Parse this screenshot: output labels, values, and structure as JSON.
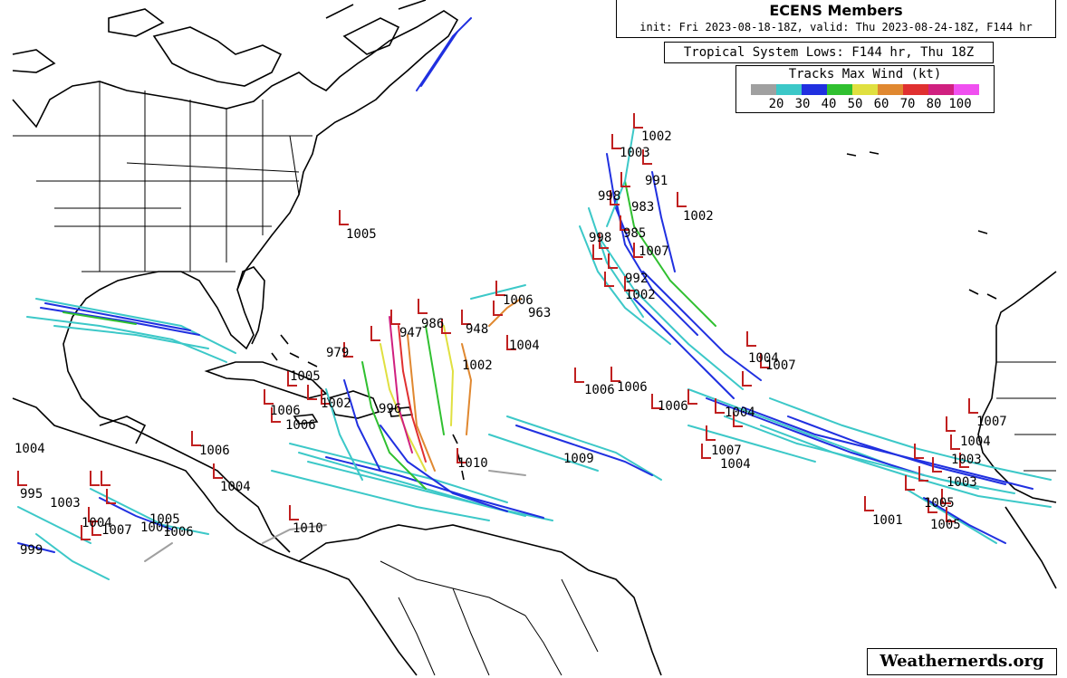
{
  "header": {
    "title": "ECENS Members",
    "subtitle": "init: Fri 2023-08-18-18Z, valid: Thu 2023-08-24-18Z, F144 hr",
    "system_label": "Tropical System Lows: F144 hr, Thu 18Z"
  },
  "legend": {
    "title": "Tracks Max Wind (kt)",
    "colors": [
      "#a0a0a0",
      "#3cc8c8",
      "#2030e0",
      "#30c030",
      "#e0e040",
      "#e08830",
      "#e03030",
      "#d02080",
      "#f050f0"
    ],
    "ticks": [
      "20",
      "30",
      "40",
      "50",
      "60",
      "70",
      "80",
      "100"
    ]
  },
  "watermark": "Weathernerds.org",
  "track_colors": {
    "weak": "#3cc8c8",
    "ts": "#2030e0",
    "mod": "#30c030",
    "strong": "#e0e040",
    "cat1": "#e08830",
    "cat2": "#e03030",
    "cat3": "#d02080",
    "depression": "#a0a0a0",
    "low_marker": "#c02020"
  },
  "labels": [
    {
      "id": "l1",
      "text": "1002"
    },
    {
      "id": "l2",
      "text": "1003"
    },
    {
      "id": "l3",
      "text": "991"
    },
    {
      "id": "l4",
      "text": "998"
    },
    {
      "id": "l5",
      "text": "983"
    },
    {
      "id": "l6",
      "text": "1002"
    },
    {
      "id": "l7",
      "text": "985"
    },
    {
      "id": "l8",
      "text": "998"
    },
    {
      "id": "l9",
      "text": "1007"
    },
    {
      "id": "l10",
      "text": "992"
    },
    {
      "id": "l11",
      "text": "1002"
    },
    {
      "id": "l12",
      "text": "1005"
    },
    {
      "id": "l13",
      "text": "1006"
    },
    {
      "id": "l14",
      "text": "963"
    },
    {
      "id": "l15",
      "text": "986"
    },
    {
      "id": "l16",
      "text": "948"
    },
    {
      "id": "l17",
      "text": "947"
    },
    {
      "id": "l18",
      "text": "1004"
    },
    {
      "id": "l19",
      "text": "979"
    },
    {
      "id": "l20",
      "text": "1002"
    },
    {
      "id": "l21",
      "text": "1005"
    },
    {
      "id": "l22",
      "text": "1002"
    },
    {
      "id": "l23",
      "text": "996"
    },
    {
      "id": "l24",
      "text": "1006"
    },
    {
      "id": "l25",
      "text": "1006"
    },
    {
      "id": "l26",
      "text": "1006"
    },
    {
      "id": "l27",
      "text": "1004"
    },
    {
      "id": "l28",
      "text": "1006"
    },
    {
      "id": "l29",
      "text": "1004"
    },
    {
      "id": "l30",
      "text": "995"
    },
    {
      "id": "l31",
      "text": "1003"
    },
    {
      "id": "l32",
      "text": "1004"
    },
    {
      "id": "l33",
      "text": "1007"
    },
    {
      "id": "l34",
      "text": "1005"
    },
    {
      "id": "l35",
      "text": "1006"
    },
    {
      "id": "l36",
      "text": "999"
    },
    {
      "id": "l37",
      "text": "1010"
    },
    {
      "id": "l38",
      "text": "1010"
    },
    {
      "id": "l39",
      "text": "1009"
    },
    {
      "id": "l40",
      "text": "1006"
    },
    {
      "id": "l41",
      "text": "1006"
    },
    {
      "id": "l42",
      "text": "1004"
    },
    {
      "id": "l43",
      "text": "1007"
    },
    {
      "id": "l44",
      "text": "1004"
    },
    {
      "id": "l45",
      "text": "1007"
    },
    {
      "id": "l46",
      "text": "1004"
    },
    {
      "id": "l47",
      "text": "1001"
    },
    {
      "id": "l48",
      "text": "1005"
    },
    {
      "id": "l49",
      "text": "1003"
    },
    {
      "id": "l50",
      "text": "1003"
    },
    {
      "id": "l51",
      "text": "1005"
    },
    {
      "id": "l52",
      "text": "1007"
    },
    {
      "id": "l53",
      "text": "1004"
    },
    {
      "id": "l54",
      "text": "1001"
    }
  ]
}
